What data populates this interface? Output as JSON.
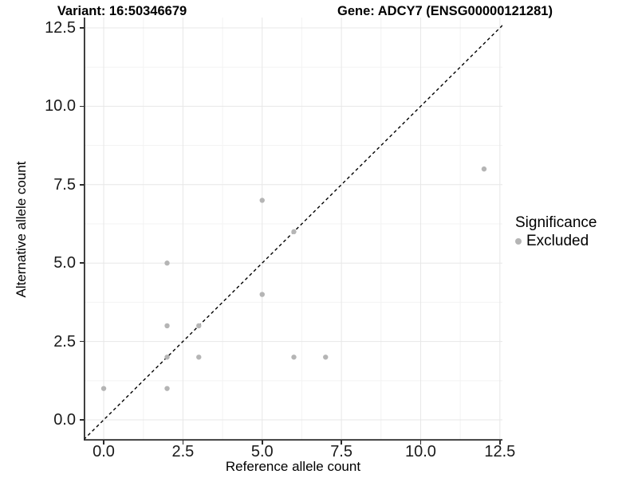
{
  "chart_data": {
    "type": "scatter",
    "title_left": "Variant: 16:50346679",
    "title_right": "Gene: ADCY7 (ENSG00000121281)",
    "xlabel": "Reference allele count",
    "ylabel": "Alternative allele count",
    "xlim": [
      -0.63,
      12.58
    ],
    "ylim": [
      -0.66,
      12.83
    ],
    "x_tick_values": [
      0,
      2.5,
      5,
      7.5,
      10,
      12.5
    ],
    "y_tick_values": [
      0,
      2.5,
      5,
      7.5,
      10,
      12.5
    ],
    "x_tick_labels": [
      "0.0",
      "2.5",
      "5.0",
      "7.5",
      "10.0",
      "12.5"
    ],
    "y_tick_labels": [
      "0.0",
      "2.5",
      "5.0",
      "7.5",
      "10.0",
      "12.5"
    ],
    "minor_tick_values": [
      1.25,
      3.75,
      6.25,
      8.75,
      11.25
    ],
    "grid": "major+minor",
    "identity_line": {
      "slope": 1,
      "intercept": 0,
      "style": "dashed",
      "color": "#000000"
    },
    "series": [
      {
        "name": "Excluded",
        "color": "#b5b5b5",
        "points": [
          [
            0,
            1
          ],
          [
            2,
            1
          ],
          [
            2,
            2
          ],
          [
            2,
            3
          ],
          [
            2,
            5
          ],
          [
            3,
            2
          ],
          [
            3,
            3
          ],
          [
            5,
            4
          ],
          [
            5,
            7
          ],
          [
            6,
            2
          ],
          [
            6,
            6
          ],
          [
            7,
            2
          ],
          [
            12,
            8
          ]
        ]
      }
    ],
    "legend": {
      "title": "Significance",
      "position": "right",
      "items": [
        {
          "label": "Excluded",
          "color": "#b5b5b5"
        }
      ]
    }
  },
  "colors": {
    "point": "#b5b5b5",
    "axis_line": "#2b2b2b",
    "grid_major": "#e7e7e7",
    "grid_minor": "#f3f3f3",
    "identity_line": "#000000",
    "text": "#000000"
  }
}
